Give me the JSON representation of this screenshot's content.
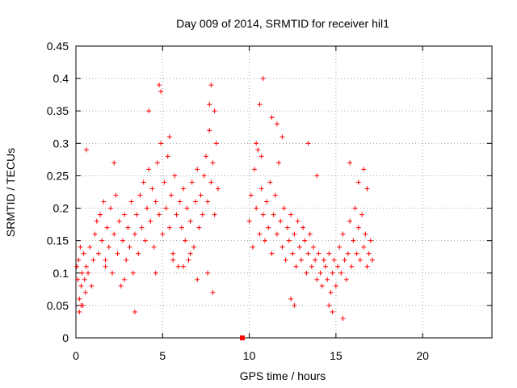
{
  "chart_data": {
    "type": "scatter",
    "title": "Day 009 of 2014, SRMTID for receiver hil1",
    "xlabel": "GPS time / hours",
    "ylabel": "SRMTID / TECUs",
    "xlim": [
      0,
      24
    ],
    "ylim": [
      0,
      0.45
    ],
    "xticks": [
      0,
      5,
      10,
      15,
      20
    ],
    "xtick_labels": [
      "0",
      "5",
      "10",
      "15",
      "20"
    ],
    "yticks": [
      0,
      0.05,
      0.1,
      0.15,
      0.2,
      0.25,
      0.3,
      0.35,
      0.4,
      0.45
    ],
    "ytick_labels": [
      "0",
      "0.05",
      "0.1",
      "0.15",
      "0.2",
      "0.25",
      "0.3",
      "0.35",
      "0.4",
      "0.45"
    ],
    "grid": true,
    "marker": "plus",
    "color": "#ff0000",
    "gap_marker": {
      "x": 9.6,
      "y": 0.0
    },
    "series": [
      {
        "name": "hil1",
        "x": [
          0.05,
          0.1,
          0.15,
          0.2,
          0.25,
          0.3,
          0.35,
          0.4,
          0.45,
          0.5,
          0.55,
          0.6,
          0.7,
          0.8,
          0.9,
          1.0,
          1.1,
          1.2,
          1.3,
          1.4,
          1.5,
          1.6,
          1.7,
          1.8,
          1.9,
          2.0,
          2.1,
          2.2,
          2.3,
          2.4,
          2.5,
          2.6,
          2.7,
          2.8,
          2.9,
          3.0,
          3.1,
          3.2,
          3.3,
          3.4,
          3.5,
          3.6,
          3.7,
          3.8,
          3.9,
          4.0,
          4.1,
          4.2,
          4.3,
          4.4,
          4.5,
          4.6,
          4.7,
          4.8,
          4.9,
          5.0,
          5.1,
          5.2,
          5.3,
          5.4,
          5.5,
          5.6,
          5.7,
          5.8,
          5.9,
          6.0,
          6.1,
          6.2,
          6.3,
          6.4,
          6.5,
          6.6,
          6.7,
          6.8,
          6.9,
          7.0,
          7.1,
          7.2,
          7.3,
          7.4,
          7.5,
          7.6,
          7.7,
          7.8,
          7.9,
          8.0,
          8.1,
          8.2,
          10.0,
          10.1,
          10.2,
          10.3,
          10.4,
          10.5,
          10.6,
          10.7,
          10.8,
          10.9,
          11.0,
          11.1,
          11.2,
          11.3,
          11.4,
          11.5,
          11.6,
          11.7,
          11.8,
          11.9,
          12.0,
          12.1,
          12.2,
          12.3,
          12.4,
          12.5,
          12.6,
          12.7,
          12.8,
          12.9,
          13.0,
          13.1,
          13.2,
          13.3,
          13.4,
          13.5,
          13.6,
          13.7,
          13.8,
          13.9,
          14.0,
          14.1,
          14.2,
          14.3,
          14.4,
          14.5,
          14.6,
          14.7,
          14.8,
          14.9,
          15.0,
          15.1,
          15.2,
          15.3,
          15.4,
          15.5,
          15.6,
          15.7,
          15.8,
          15.9,
          16.0,
          16.1,
          16.2,
          16.3,
          16.4,
          16.5,
          16.6,
          16.7,
          16.8,
          16.9,
          17.0,
          17.1,
          0.2,
          0.6,
          1.4,
          2.2,
          3.4,
          4.2,
          4.8,
          5.4,
          6.2,
          7.0,
          7.8,
          7.9,
          8.0,
          10.4,
          10.7,
          11.3,
          11.9,
          12.6,
          13.4,
          14.6,
          15.8,
          16.3,
          16.6,
          0.3,
          1.7,
          2.8,
          4.6,
          5.6,
          6.6,
          7.6,
          10.8,
          11.6,
          12.4,
          13.9,
          14.8,
          15.4,
          16.8,
          4.9,
          7.7,
          10.6
        ],
        "y": [
          0.11,
          0.09,
          0.12,
          0.06,
          0.14,
          0.08,
          0.1,
          0.05,
          0.13,
          0.09,
          0.07,
          0.11,
          0.1,
          0.14,
          0.08,
          0.12,
          0.16,
          0.18,
          0.13,
          0.19,
          0.15,
          0.21,
          0.12,
          0.17,
          0.14,
          0.2,
          0.1,
          0.16,
          0.22,
          0.13,
          0.18,
          0.08,
          0.15,
          0.19,
          0.12,
          0.17,
          0.14,
          0.21,
          0.1,
          0.16,
          0.19,
          0.13,
          0.22,
          0.17,
          0.24,
          0.15,
          0.2,
          0.26,
          0.18,
          0.23,
          0.14,
          0.21,
          0.27,
          0.19,
          0.3,
          0.16,
          0.24,
          0.2,
          0.28,
          0.17,
          0.22,
          0.13,
          0.25,
          0.19,
          0.11,
          0.21,
          0.17,
          0.23,
          0.15,
          0.2,
          0.12,
          0.18,
          0.24,
          0.14,
          0.21,
          0.26,
          0.17,
          0.22,
          0.19,
          0.25,
          0.28,
          0.21,
          0.32,
          0.24,
          0.27,
          0.19,
          0.3,
          0.23,
          0.18,
          0.22,
          0.14,
          0.26,
          0.2,
          0.29,
          0.16,
          0.23,
          0.19,
          0.15,
          0.21,
          0.17,
          0.24,
          0.13,
          0.19,
          0.22,
          0.16,
          0.27,
          0.18,
          0.14,
          0.2,
          0.12,
          0.17,
          0.15,
          0.19,
          0.13,
          0.16,
          0.11,
          0.18,
          0.14,
          0.12,
          0.17,
          0.15,
          0.1,
          0.13,
          0.16,
          0.11,
          0.14,
          0.12,
          0.09,
          0.13,
          0.1,
          0.08,
          0.12,
          0.11,
          0.09,
          0.13,
          0.07,
          0.1,
          0.12,
          0.08,
          0.11,
          0.14,
          0.1,
          0.16,
          0.12,
          0.09,
          0.13,
          0.18,
          0.11,
          0.15,
          0.2,
          0.13,
          0.17,
          0.12,
          0.19,
          0.14,
          0.16,
          0.11,
          0.13,
          0.15,
          0.12,
          0.04,
          0.29,
          0.19,
          0.27,
          0.04,
          0.35,
          0.39,
          0.31,
          0.11,
          0.09,
          0.39,
          0.07,
          0.35,
          0.3,
          0.28,
          0.34,
          0.31,
          0.05,
          0.3,
          0.05,
          0.27,
          0.24,
          0.26,
          0.05,
          0.11,
          0.09,
          0.1,
          0.12,
          0.13,
          0.1,
          0.4,
          0.33,
          0.06,
          0.25,
          0.04,
          0.03,
          0.23,
          0.38,
          0.36,
          0.36
        ]
      }
    ]
  }
}
